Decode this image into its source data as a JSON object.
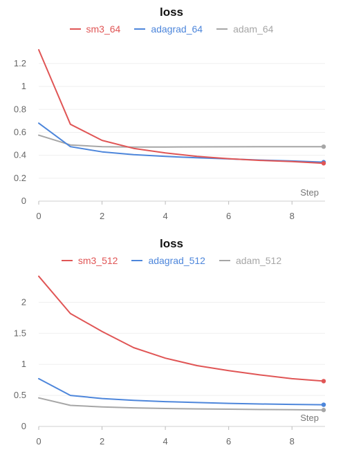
{
  "chart_data": [
    {
      "type": "line",
      "title": "loss",
      "xlabel": "Step",
      "ylabel": "",
      "x": [
        0,
        1,
        2,
        3,
        4,
        5,
        6,
        7,
        8,
        9
      ],
      "xticks": [
        "0",
        "2",
        "4",
        "6",
        "8"
      ],
      "yticks": [
        "0",
        "0.2",
        "0.4",
        "0.6",
        "0.8",
        "1",
        "1.2"
      ],
      "ylim": [
        0,
        1.35
      ],
      "xlim": [
        0,
        9
      ],
      "grid": true,
      "legend": "top",
      "series": [
        {
          "name": "sm3_64",
          "color": "#e05555",
          "values": [
            1.32,
            0.67,
            0.53,
            0.46,
            0.42,
            0.39,
            0.37,
            0.355,
            0.345,
            0.33
          ]
        },
        {
          "name": "adagrad_64",
          "color": "#4d86db",
          "values": [
            0.68,
            0.475,
            0.43,
            0.405,
            0.39,
            0.378,
            0.368,
            0.358,
            0.35,
            0.34
          ]
        },
        {
          "name": "adam_64",
          "color": "#a6a6a6",
          "values": [
            0.575,
            0.49,
            0.475,
            0.472,
            0.472,
            0.473,
            0.474,
            0.475,
            0.475,
            0.475
          ]
        }
      ]
    },
    {
      "type": "line",
      "title": "loss",
      "xlabel": "Step",
      "ylabel": "",
      "x": [
        0,
        1,
        2,
        3,
        4,
        5,
        6,
        7,
        8,
        9
      ],
      "xticks": [
        "0",
        "2",
        "4",
        "6",
        "8"
      ],
      "yticks": [
        "0",
        "0.5",
        "1",
        "1.5",
        "2"
      ],
      "ylim": [
        0,
        2.45
      ],
      "xlim": [
        0,
        9
      ],
      "grid": true,
      "legend": "top",
      "series": [
        {
          "name": "sm3_512",
          "color": "#e05555",
          "values": [
            2.42,
            1.82,
            1.53,
            1.27,
            1.1,
            0.98,
            0.9,
            0.83,
            0.77,
            0.73
          ]
        },
        {
          "name": "adagrad_512",
          "color": "#4d86db",
          "values": [
            0.77,
            0.5,
            0.45,
            0.42,
            0.4,
            0.385,
            0.372,
            0.362,
            0.355,
            0.35
          ]
        },
        {
          "name": "adam_512",
          "color": "#a6a6a6",
          "values": [
            0.46,
            0.34,
            0.315,
            0.3,
            0.29,
            0.283,
            0.278,
            0.273,
            0.27,
            0.265
          ]
        }
      ]
    }
  ]
}
